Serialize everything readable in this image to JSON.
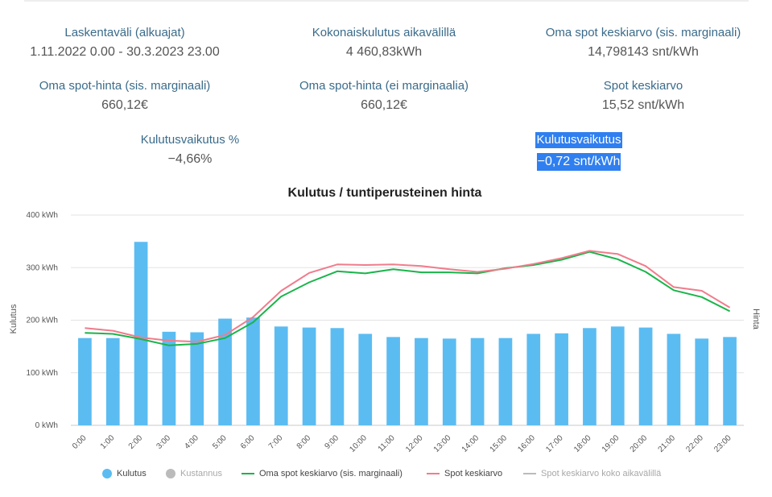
{
  "stats": [
    {
      "label": "Laskentaväli (alkuajat)",
      "value": "1.11.2022 0.00 - 30.3.2023 23.00"
    },
    {
      "label": "Kokonaiskulutus aikavälillä",
      "value": "4 460,83kWh"
    },
    {
      "label": "Oma spot keskiarvo (sis. marginaali)",
      "value": "14,798143 snt/kWh"
    },
    {
      "label": "Oma spot-hinta (sis. marginaali)",
      "value": "660,12€"
    },
    {
      "label": "Oma spot-hinta (ei marginaalia)",
      "value": "660,12€"
    },
    {
      "label": "Spot keskiarvo",
      "value": "15,52 snt/kWh"
    },
    {
      "label": "Kulutusvaikutus %",
      "value": "−4,66%"
    },
    {
      "label": "Kulutusvaikutus",
      "value": "−0,72 snt/kWh"
    }
  ],
  "chart_data": {
    "type": "bar",
    "title": "Kulutus / tuntiperusteinen hinta",
    "ylabel": "Kulutus",
    "y2label": "Hinta",
    "ylim": [
      0,
      400
    ],
    "yticks": [
      "0 kWh",
      "100 kWh",
      "200 kWh",
      "300 kWh",
      "400 kWh"
    ],
    "grid": true,
    "legend_position": "bottom",
    "categories": [
      "0:00",
      "1:00",
      "2:00",
      "3:00",
      "4:00",
      "5:00",
      "6:00",
      "7:00",
      "8:00",
      "9:00",
      "10:00",
      "11:00",
      "12:00",
      "13:00",
      "14:00",
      "15:00",
      "16:00",
      "17:00",
      "18:00",
      "19:00",
      "20:00",
      "21:00",
      "22:00",
      "23:00"
    ],
    "series": [
      {
        "name": "Kulutus",
        "kind": "bar",
        "color": "#5bbcf2",
        "values": [
          166,
          166,
          349,
          178,
          177,
          203,
          205,
          188,
          186,
          185,
          174,
          168,
          166,
          165,
          166,
          166,
          174,
          175,
          185,
          188,
          186,
          174,
          165,
          168
        ]
      },
      {
        "name": "Oma spot keskiarvo (sis. marginaali)",
        "kind": "line",
        "color": "#1ab44a",
        "values": [
          176,
          174,
          164,
          152,
          155,
          166,
          196,
          245,
          272,
          293,
          289,
          297,
          291,
          291,
          289,
          299,
          305,
          315,
          330,
          316,
          292,
          257,
          244,
          217
        ]
      },
      {
        "name": "Spot keskiarvo",
        "kind": "line",
        "color": "#f07c8c",
        "values": [
          185,
          180,
          167,
          161,
          159,
          172,
          206,
          256,
          290,
          306,
          305,
          306,
          303,
          297,
          292,
          298,
          307,
          318,
          332,
          326,
          303,
          263,
          256,
          224
        ]
      }
    ],
    "legend": [
      {
        "name": "Kulutus",
        "marker": "dot",
        "color": "#5bbcf2",
        "dim": false
      },
      {
        "name": "Kustannus",
        "marker": "dot",
        "color": "#bbbbbb",
        "dim": true
      },
      {
        "name": "Oma spot keskiarvo (sis. marginaali)",
        "marker": "line",
        "color": "#1ab44a",
        "dim": false
      },
      {
        "name": "Spot keskiarvo",
        "marker": "line",
        "color": "#f07c8c",
        "dim": false
      },
      {
        "name": "Spot keskiarvo koko aikavälillä",
        "marker": "line",
        "color": "#bbbbbb",
        "dim": true
      }
    ]
  }
}
